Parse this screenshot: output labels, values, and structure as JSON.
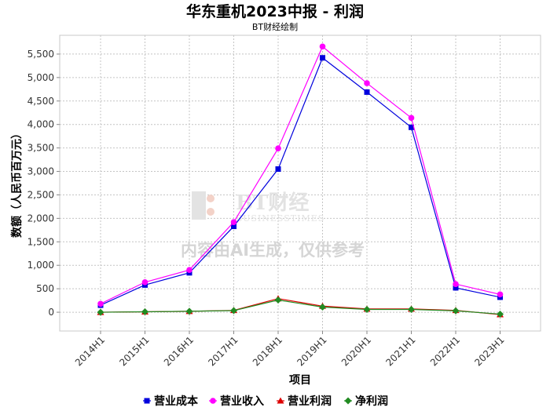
{
  "chart_data": {
    "type": "line",
    "title": "华东重机2023中报 - 利润",
    "subtitle": "BT财经绘制",
    "xlabel": "项目",
    "ylabel": "数额（人民币百万元）",
    "categories": [
      "2014H1",
      "2015H1",
      "2016H1",
      "2017H1",
      "2018H1",
      "2019H1",
      "2020H1",
      "2021H1",
      "2022H1",
      "2023H1"
    ],
    "ylim": [
      -400,
      5900
    ],
    "yticks": [
      0,
      500,
      1000,
      1500,
      2000,
      2500,
      3000,
      3500,
      4000,
      4500,
      5000,
      5500
    ],
    "ytick_labels": [
      "0",
      "500",
      "1,000",
      "1,500",
      "2,000",
      "2,500",
      "3,000",
      "3,500",
      "4,000",
      "4,500",
      "5,000",
      "5,500"
    ],
    "grid": true,
    "legend_position": "bottom",
    "series": [
      {
        "name": "营业成本",
        "color": "#0000dd",
        "marker": "square",
        "values": [
          150,
          580,
          840,
          1830,
          3050,
          5420,
          4690,
          3940,
          520,
          320
        ]
      },
      {
        "name": "营业收入",
        "color": "#ff00ff",
        "marker": "circle",
        "values": [
          180,
          640,
          900,
          1920,
          3490,
          5660,
          4880,
          4140,
          600,
          380
        ]
      },
      {
        "name": "营业利润",
        "color": "#dd0000",
        "marker": "triangle",
        "values": [
          0,
          10,
          20,
          40,
          290,
          130,
          70,
          70,
          40,
          -50
        ]
      },
      {
        "name": "净利润",
        "color": "#228b22",
        "marker": "diamond",
        "values": [
          0,
          10,
          20,
          35,
          260,
          110,
          60,
          60,
          30,
          -40
        ]
      }
    ]
  },
  "watermark": {
    "brand": "BT财经",
    "brand_en": "BUSINESSTIMES",
    "disclaimer": "内容由AI生成，仅供参考"
  }
}
